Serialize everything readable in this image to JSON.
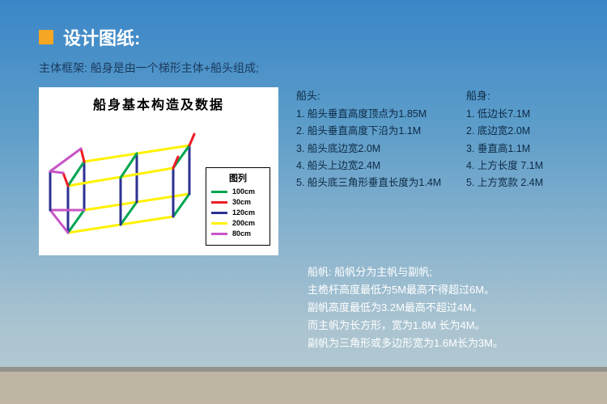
{
  "header": {
    "title": "设计图纸:",
    "accent_color": "#f5a623",
    "text_color": "#ffffff"
  },
  "subtitle": {
    "label": "主体框架:",
    "desc": " 船身是由一个梯形主体+船头组成;"
  },
  "diagram": {
    "title": "船身基本构造及数据",
    "legend_title": "图列",
    "legend": [
      {
        "color": "#00a651",
        "label": "100cm"
      },
      {
        "color": "#ed1c24",
        "label": "30cm"
      },
      {
        "color": "#2e3192",
        "label": "120cm"
      },
      {
        "color": "#fff200",
        "label": "200cm"
      },
      {
        "color": "#c755c7",
        "label": "80cm"
      }
    ],
    "line_width": 3
  },
  "bow": {
    "title": "船头:",
    "items": [
      "1. 船头垂直高度顶点为1.85M",
      "2. 船头垂直高度下沿为1.1M",
      "3. 船头底边宽2.0M",
      "4. 船头上边宽2.4M",
      "5. 船头底三角形垂直长度为1.4M"
    ]
  },
  "hull": {
    "title": "船身:",
    "items": [
      "1. 低边长7.1M",
      "2. 底边宽2.0M",
      "3. 垂直高1.1M",
      "4. 上方长度 7.1M",
      "5. 上方宽款 2.4M"
    ]
  },
  "sail": {
    "lines": [
      "船帆: 船帆分为主帆与副帆;",
      "主桅杆高度最低为5M最高不得超过6M。",
      "副帆高度最低为3.2M最高不超过4M。",
      "而主帆为长方形，宽为1.8M 长为4M。",
      "副帆为三角形或多边形宽为1.6M长为3M。"
    ]
  },
  "colors": {
    "bg_top": "#3a86c8",
    "bg_bottom": "#b8ccd2",
    "text_dark": "#0d2a45",
    "text_white": "#ffffff"
  }
}
